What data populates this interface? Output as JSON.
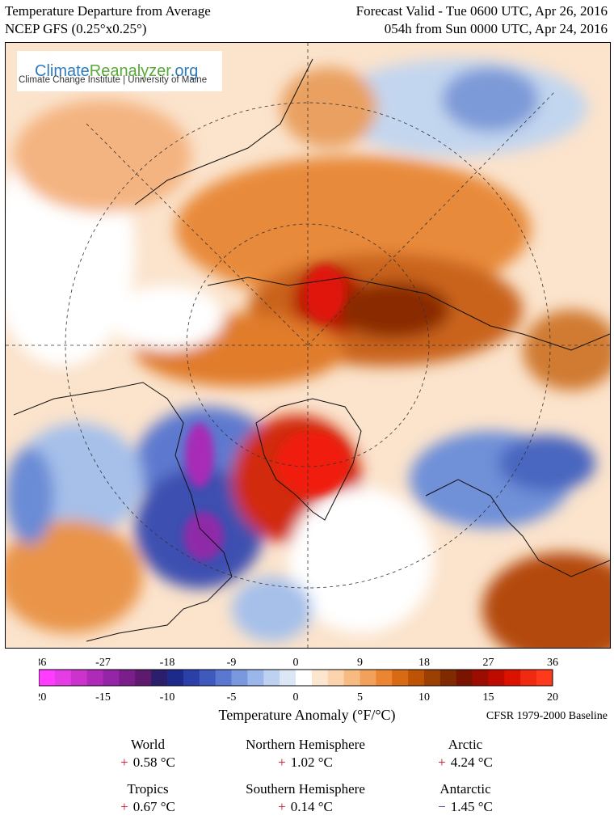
{
  "header": {
    "title_left": "Temperature Departure from Average",
    "subtitle_left": "NCEP GFS (0.25°x0.25°)",
    "title_right": "Forecast Valid - Tue 0600 UTC, Apr 26, 2016",
    "subtitle_right": "054h from Sun 0000 UTC, Apr 24, 2016"
  },
  "logo": {
    "name_part1": "Climate",
    "name_part2": "Reanalyzer",
    "name_part3": ".org",
    "subtitle": "Climate Change Institute | University of Maine"
  },
  "map": {
    "projection": "north-polar-stereographic",
    "features": [
      {
        "id": "greenland",
        "anomaly_c": 15
      },
      {
        "id": "central-siberia",
        "anomaly_c": 15
      },
      {
        "id": "hudson-bay",
        "anomaly_c": -15
      },
      {
        "id": "canadian-arctic-archipelago",
        "anomaly_c": -12
      },
      {
        "id": "western-europe",
        "anomaly_c": -6
      },
      {
        "id": "western-us",
        "anomaly_c": -4
      },
      {
        "id": "eastern-us",
        "anomaly_c": 6
      },
      {
        "id": "north-africa-middle-east",
        "anomaly_c": 9
      }
    ]
  },
  "legend": {
    "title": "Temperature Anomaly (°F/°C)",
    "baseline": "CFSR 1979-2000 Baseline",
    "f_ticks": [
      "-36",
      "-27",
      "-18",
      "-9",
      "0",
      "9",
      "18",
      "27",
      "36"
    ],
    "c_ticks": [
      "-20",
      "-15",
      "-10",
      "-5",
      "0",
      "5",
      "10",
      "15",
      "20"
    ],
    "colors": [
      "#ff3cff",
      "#e63ce6",
      "#cc33cc",
      "#b02ab8",
      "#9325a6",
      "#7a1f8a",
      "#5e1a6e",
      "#2b1f6b",
      "#1d2a8c",
      "#2c3fa8",
      "#4059bd",
      "#5a78cf",
      "#7a98dd",
      "#9bb6e8",
      "#bdd1f1",
      "#dbe6f7",
      "#ffffff",
      "#fde6d0",
      "#fbd3ad",
      "#f7bb82",
      "#f2a15a",
      "#eb8531",
      "#d96a14",
      "#bd5405",
      "#9c3f02",
      "#7f2a00",
      "#7a1400",
      "#9c0c00",
      "#bf0a00",
      "#dc1200",
      "#f02a10",
      "#ff3a1c"
    ]
  },
  "stats": [
    {
      "label": "World",
      "sign": "+",
      "value": "0.58 °C"
    },
    {
      "label": "Northern Hemisphere",
      "sign": "+",
      "value": "1.02 °C"
    },
    {
      "label": "Arctic",
      "sign": "+",
      "value": "4.24 °C"
    },
    {
      "label": "Tropics",
      "sign": "+",
      "value": "0.67 °C"
    },
    {
      "label": "Southern Hemisphere",
      "sign": "+",
      "value": "0.14 °C"
    },
    {
      "label": "Antarctic",
      "sign": "−",
      "value": "1.45 °C"
    }
  ]
}
